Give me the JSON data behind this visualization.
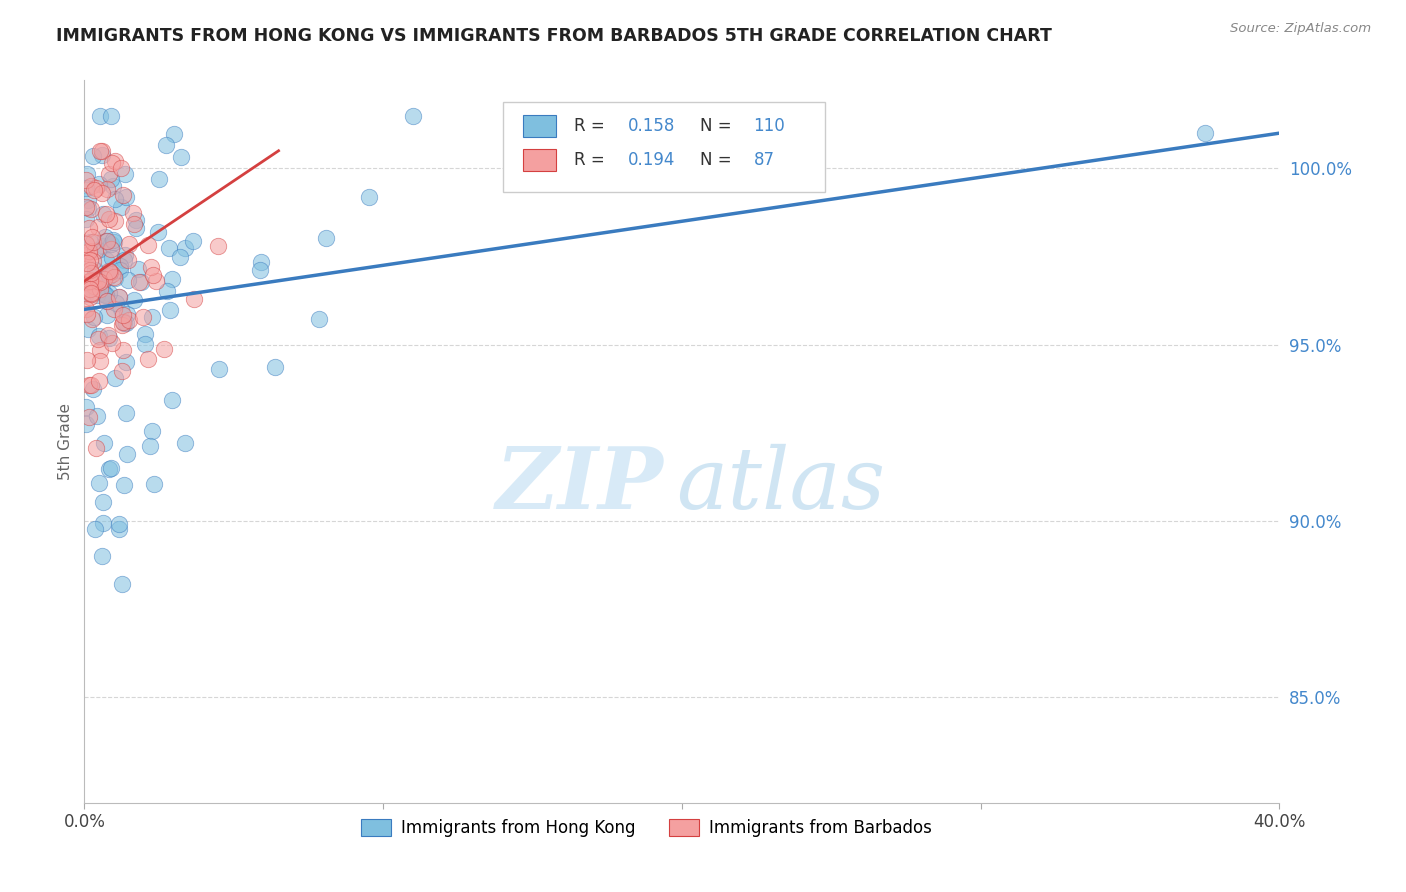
{
  "title": "IMMIGRANTS FROM HONG KONG VS IMMIGRANTS FROM BARBADOS 5TH GRADE CORRELATION CHART",
  "source_text": "Source: ZipAtlas.com",
  "ylabel": "5th Grade",
  "xlim": [
    0.0,
    40.0
  ],
  "ylim": [
    82.0,
    102.5
  ],
  "yticks": [
    85.0,
    90.0,
    95.0,
    100.0
  ],
  "ytick_labels": [
    "85.0%",
    "90.0%",
    "95.0%",
    "100.0%"
  ],
  "r_hk": 0.158,
  "n_hk": 110,
  "r_bar": 0.194,
  "n_bar": 87,
  "color_hk": "#7fbfdf",
  "color_bar": "#f4a0a0",
  "trendline_color_hk": "#3a7bbf",
  "trendline_color_bar": "#d44040",
  "watermark_zip": "ZIP",
  "watermark_atlas": "atlas",
  "legend_label_hk": "Immigrants from Hong Kong",
  "legend_label_bar": "Immigrants from Barbados",
  "grid_color": "#cccccc",
  "background_color": "#ffffff",
  "yaxis_label_color": "#4488cc",
  "title_color": "#222222",
  "source_color": "#888888",
  "hk_trend_x0": 0.0,
  "hk_trend_y0": 96.0,
  "hk_trend_x1": 40.0,
  "hk_trend_y1": 101.0,
  "bar_trend_x0": 0.0,
  "bar_trend_y0": 96.8,
  "bar_trend_x1": 6.5,
  "bar_trend_y1": 100.5
}
